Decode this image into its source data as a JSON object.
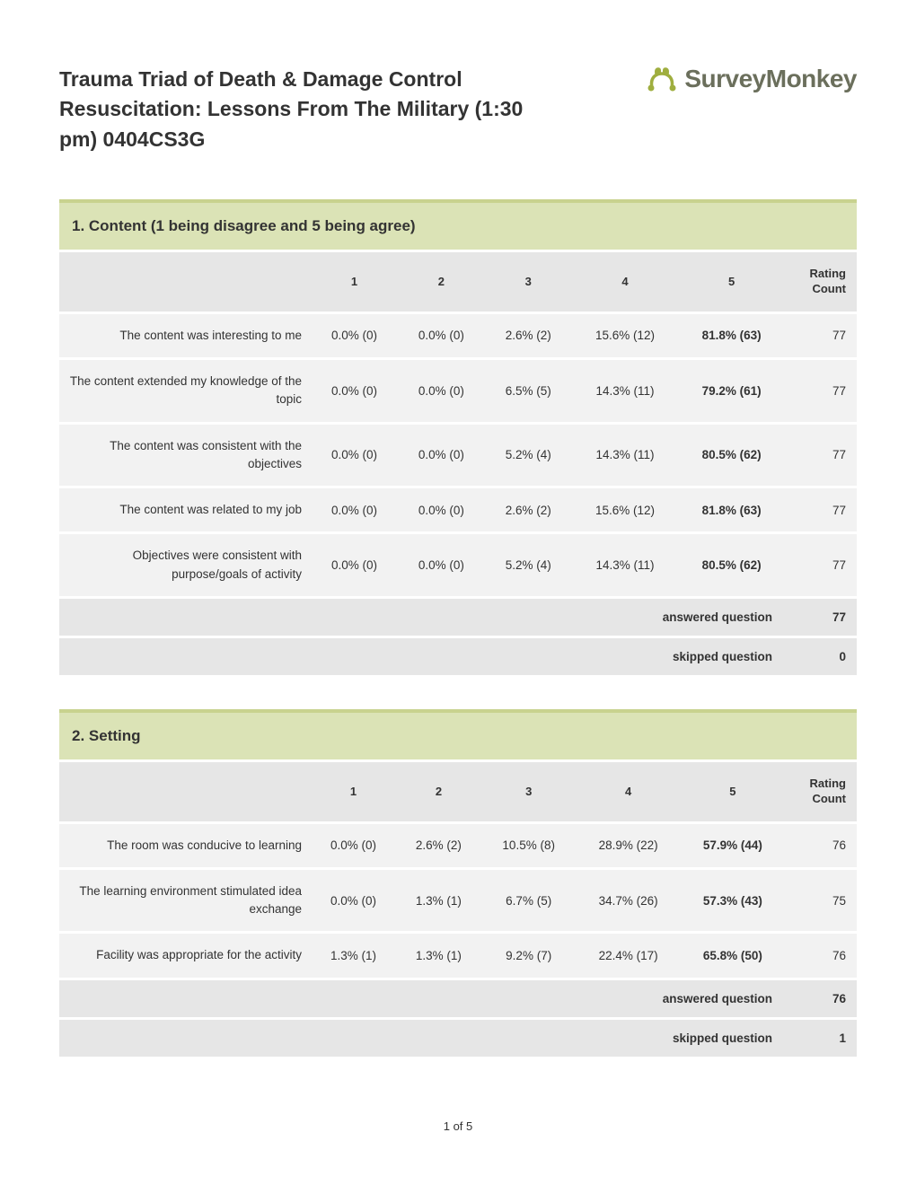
{
  "header": {
    "title": "Trauma Triad of Death & Damage Control Resuscitation: Lessons From The Military (1:30 pm) 0404CS3G",
    "logo_text": "SurveyMonkey"
  },
  "questions": [
    {
      "title": "1. Content (1 being disagree and 5 being agree)",
      "columns": [
        "1",
        "2",
        "3",
        "4",
        "5",
        "Rating Count"
      ],
      "rows": [
        {
          "label": "The content was interesting to me",
          "cells": [
            "0.0% (0)",
            "0.0% (0)",
            "2.6% (2)",
            "15.6% (12)",
            "81.8% (63)"
          ],
          "count": "77"
        },
        {
          "label": "The content extended my knowledge of the topic",
          "cells": [
            "0.0% (0)",
            "0.0% (0)",
            "6.5% (5)",
            "14.3% (11)",
            "79.2% (61)"
          ],
          "count": "77"
        },
        {
          "label": "The content was consistent with the objectives",
          "cells": [
            "0.0% (0)",
            "0.0% (0)",
            "5.2% (4)",
            "14.3% (11)",
            "80.5% (62)"
          ],
          "count": "77"
        },
        {
          "label": "The content was related to my job",
          "cells": [
            "0.0% (0)",
            "0.0% (0)",
            "2.6% (2)",
            "15.6% (12)",
            "81.8% (63)"
          ],
          "count": "77"
        },
        {
          "label": "Objectives were consistent with purpose/goals of activity",
          "cells": [
            "0.0% (0)",
            "0.0% (0)",
            "5.2% (4)",
            "14.3% (11)",
            "80.5% (62)"
          ],
          "count": "77"
        }
      ],
      "answered": "77",
      "skipped": "0"
    },
    {
      "title": "2. Setting",
      "columns": [
        "1",
        "2",
        "3",
        "4",
        "5",
        "Rating Count"
      ],
      "rows": [
        {
          "label": "The room was conducive to learning",
          "cells": [
            "0.0% (0)",
            "2.6% (2)",
            "10.5% (8)",
            "28.9% (22)",
            "57.9% (44)"
          ],
          "count": "76"
        },
        {
          "label": "The learning environment stimulated idea exchange",
          "cells": [
            "0.0% (0)",
            "1.3% (1)",
            "6.7% (5)",
            "34.7% (26)",
            "57.3% (43)"
          ],
          "count": "75"
        },
        {
          "label": "Facility was appropriate for the activity",
          "cells": [
            "1.3% (1)",
            "1.3% (1)",
            "9.2% (7)",
            "22.4% (17)",
            "65.8% (50)"
          ],
          "count": "76"
        }
      ],
      "answered": "76",
      "skipped": "1"
    }
  ],
  "labels": {
    "answered": "answered question",
    "skipped": "skipped question"
  },
  "footer": {
    "page": "1 of 5"
  }
}
